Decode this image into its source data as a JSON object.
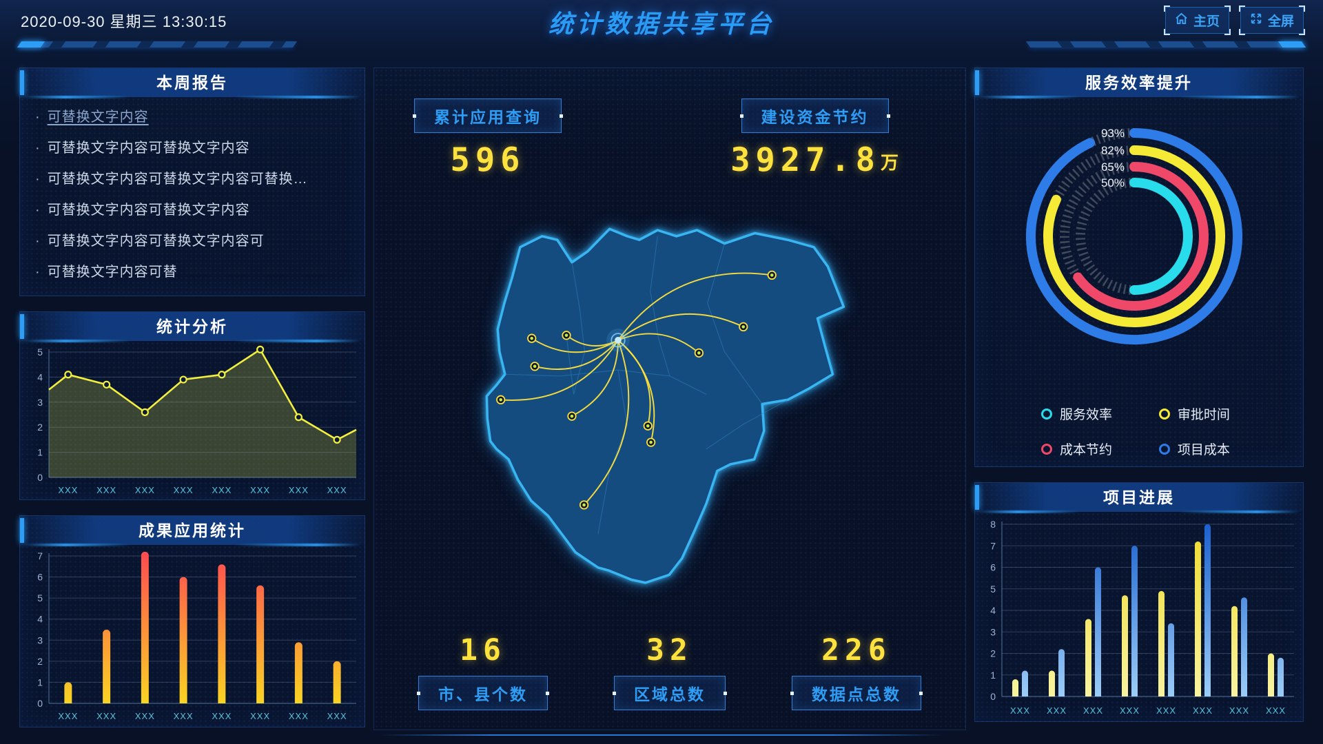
{
  "header": {
    "datetime": "2020-09-30 星期三 13:30:15",
    "title": "统计数据共享平台",
    "home_label": "主页",
    "fullscreen_label": "全屏"
  },
  "left": {
    "report": {
      "title": "本周报告",
      "items": [
        "可替换文字内容",
        "可替换文字内容可替换文字内容",
        "可替换文字内容可替换文字内容可替换…",
        "可替换文字内容可替换文字内容",
        "可替换文字内容可替换文字内容可",
        "可替换文字内容可替"
      ]
    },
    "analysis": {
      "title": "统计分析"
    },
    "results": {
      "title": "成果应用统计"
    }
  },
  "center": {
    "query_badge": {
      "label": "累计应用查询",
      "value": "596"
    },
    "savings_badge": {
      "label": "建设资金节约",
      "value": "3927.8",
      "unit": "万"
    },
    "stats": [
      {
        "value": "16",
        "label": "市、县个数"
      },
      {
        "value": "32",
        "label": "区域总数"
      },
      {
        "value": "226",
        "label": "数据点总数"
      }
    ]
  },
  "right": {
    "efficiency": {
      "title": "服务效率提升"
    },
    "progress": {
      "title": "项目进展"
    }
  },
  "chart_data": [
    {
      "id": "weekly-line",
      "type": "line",
      "title": "统计分析",
      "categories": [
        "XXX",
        "XXX",
        "XXX",
        "XXX",
        "XXX",
        "XXX",
        "XXX",
        "XXX"
      ],
      "values": [
        4.1,
        3.7,
        2.6,
        3.9,
        4.1,
        5.1,
        2.4,
        1.5
      ],
      "edge_start": 3.5,
      "edge_end": 1.9,
      "ylim": [
        0,
        5
      ],
      "xlabel": "",
      "ylabel": "",
      "grid": true,
      "line_color": "#f2ef3e",
      "area_color": "rgba(200,210,70,0.26)"
    },
    {
      "id": "results-bar",
      "type": "bar",
      "title": "成果应用统计",
      "categories": [
        "XXX",
        "XXX",
        "XXX",
        "XXX",
        "XXX",
        "XXX",
        "XXX",
        "XXX"
      ],
      "values": [
        1,
        3.5,
        7.2,
        6,
        6.6,
        5.6,
        2.9,
        2
      ],
      "ylim": [
        0,
        7
      ],
      "xlabel": "",
      "ylabel": "",
      "grid": true,
      "gradient": [
        "#f9d423",
        "#ff4e50"
      ]
    },
    {
      "id": "efficiency-radial",
      "type": "pie",
      "title": "服务效率提升",
      "rings": [
        {
          "name": "项目成本",
          "pct": 93,
          "color": "#2e7ce8"
        },
        {
          "name": "审批时间",
          "pct": 82,
          "color": "#f5ea35"
        },
        {
          "name": "成本节约",
          "pct": 65,
          "color": "#ef4868"
        },
        {
          "name": "服务效率",
          "pct": 50,
          "color": "#29dcec"
        }
      ],
      "legend": [
        {
          "name": "服务效率",
          "color": "#29dcec"
        },
        {
          "name": "审批时间",
          "color": "#f5ea35"
        },
        {
          "name": "成本节约",
          "color": "#ef4868"
        },
        {
          "name": "项目成本",
          "color": "#2e7ce8"
        }
      ],
      "legend_position": "bottom",
      "track_color": "#4a5361"
    },
    {
      "id": "progress-bars",
      "type": "bar",
      "title": "项目进展",
      "categories": [
        "XXX",
        "XXX",
        "XXX",
        "XXX",
        "XXX",
        "XXX",
        "XXX",
        "XXX"
      ],
      "series": [
        {
          "name": "yellow",
          "values": [
            0.8,
            1.2,
            3.6,
            4.7,
            4.9,
            7.2,
            4.2,
            2.0
          ],
          "colors": [
            "#f8f3a0",
            "#f0da2e"
          ]
        },
        {
          "name": "blue",
          "values": [
            1.2,
            2.2,
            6.0,
            7.0,
            3.4,
            8.0,
            4.6,
            1.8
          ],
          "colors": [
            "#9ccdf8",
            "#1b61cf"
          ]
        }
      ],
      "ylim": [
        0,
        8
      ],
      "grid": true
    }
  ],
  "map": {
    "hub": [
      415,
      381
    ],
    "endpoints": [
      [
        668,
        274
      ],
      [
        621,
        359
      ],
      [
        548,
        402
      ],
      [
        273,
        378
      ],
      [
        330,
        373
      ],
      [
        278,
        424
      ],
      [
        222,
        479
      ],
      [
        339,
        506
      ],
      [
        464,
        522
      ],
      [
        469,
        549
      ],
      [
        359,
        652
      ]
    ]
  },
  "colors": {
    "accent_blue": "#2e9df5",
    "digital_yellow": "#ffe23d",
    "map_fill": "#14497d",
    "map_stroke": "#39b6f2",
    "flight_line": "#ffe13a"
  }
}
